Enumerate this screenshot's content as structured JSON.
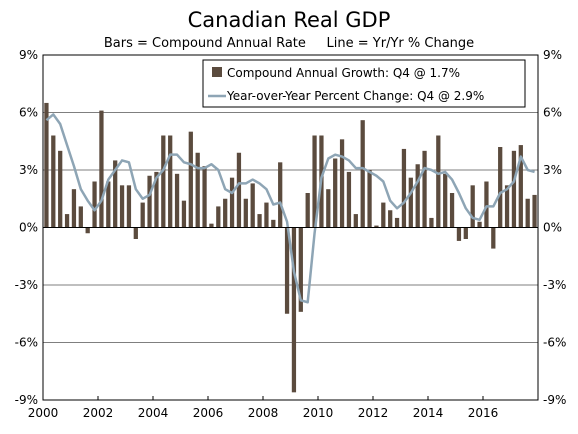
{
  "chart_data": {
    "type": "bar+line",
    "title": "Canadian Real GDP",
    "subtitle": "Bars = Compound Annual Rate     Line = Yr/Yr % Change",
    "y_ticks": [
      "9%",
      "6%",
      "3%",
      "0%",
      "-3%",
      "-6%",
      "-9%"
    ],
    "y_tick_values": [
      9,
      6,
      3,
      0,
      -3,
      -6,
      -9
    ],
    "x_ticks": [
      "2000",
      "2002",
      "2004",
      "2006",
      "2008",
      "2010",
      "2012",
      "2014",
      "2016"
    ],
    "x_tick_values": [
      2000,
      2002,
      2004,
      2006,
      2008,
      2010,
      2012,
      2014,
      2016
    ],
    "ylim": [
      -9,
      9
    ],
    "xlim": [
      2000,
      2018
    ],
    "grid": "horizontal",
    "legend_position": "top-right",
    "colors": {
      "bars": "#5b4b3e",
      "line": "#8ea5b5"
    },
    "series": [
      {
        "name": "Compound Annual Growth: Q4 @ 1.7%",
        "type": "bar",
        "x": [
          "2000-Q1",
          "2000-Q2",
          "2000-Q3",
          "2000-Q4",
          "2001-Q1",
          "2001-Q2",
          "2001-Q3",
          "2001-Q4",
          "2002-Q1",
          "2002-Q2",
          "2002-Q3",
          "2002-Q4",
          "2003-Q1",
          "2003-Q2",
          "2003-Q3",
          "2003-Q4",
          "2004-Q1",
          "2004-Q2",
          "2004-Q3",
          "2004-Q4",
          "2005-Q1",
          "2005-Q2",
          "2005-Q3",
          "2005-Q4",
          "2006-Q1",
          "2006-Q2",
          "2006-Q3",
          "2006-Q4",
          "2007-Q1",
          "2007-Q2",
          "2007-Q3",
          "2007-Q4",
          "2008-Q1",
          "2008-Q2",
          "2008-Q3",
          "2008-Q4",
          "2009-Q1",
          "2009-Q2",
          "2009-Q3",
          "2009-Q4",
          "2010-Q1",
          "2010-Q2",
          "2010-Q3",
          "2010-Q4",
          "2011-Q1",
          "2011-Q2",
          "2011-Q3",
          "2011-Q4",
          "2012-Q1",
          "2012-Q2",
          "2012-Q3",
          "2012-Q4",
          "2013-Q1",
          "2013-Q2",
          "2013-Q3",
          "2013-Q4",
          "2014-Q1",
          "2014-Q2",
          "2014-Q3",
          "2014-Q4",
          "2015-Q1",
          "2015-Q2",
          "2015-Q3",
          "2015-Q4",
          "2016-Q1",
          "2016-Q2",
          "2016-Q3",
          "2016-Q4",
          "2017-Q1",
          "2017-Q2",
          "2017-Q3",
          "2017-Q4"
        ],
        "values": [
          6.5,
          4.8,
          4.0,
          0.7,
          2.0,
          1.1,
          -0.3,
          2.4,
          6.1,
          2.4,
          3.5,
          2.2,
          2.2,
          -0.6,
          1.3,
          2.7,
          2.9,
          4.8,
          4.8,
          2.8,
          1.4,
          5.0,
          3.9,
          3.2,
          0.2,
          1.1,
          1.5,
          2.6,
          3.9,
          1.5,
          2.3,
          0.7,
          1.3,
          0.4,
          3.4,
          -4.5,
          -8.6,
          -4.4,
          1.8,
          4.8,
          4.8,
          2.0,
          3.6,
          4.6,
          2.9,
          0.7,
          5.6,
          3.0,
          0.1,
          1.3,
          0.9,
          0.5,
          4.1,
          2.6,
          3.3,
          4.0,
          0.5,
          4.8,
          2.8,
          1.8,
          -0.7,
          -0.6,
          2.2,
          0.3,
          2.4,
          -1.1,
          4.2,
          2.2,
          4.0,
          4.3,
          1.5,
          1.7
        ]
      },
      {
        "name": "Year-over-Year Percent Change: Q4 @ 2.9%",
        "type": "line",
        "x": [
          "2000-Q1",
          "2000-Q2",
          "2000-Q3",
          "2000-Q4",
          "2001-Q1",
          "2001-Q2",
          "2001-Q3",
          "2001-Q4",
          "2002-Q1",
          "2002-Q2",
          "2002-Q3",
          "2002-Q4",
          "2003-Q1",
          "2003-Q2",
          "2003-Q3",
          "2003-Q4",
          "2004-Q1",
          "2004-Q2",
          "2004-Q3",
          "2004-Q4",
          "2005-Q1",
          "2005-Q2",
          "2005-Q3",
          "2005-Q4",
          "2006-Q1",
          "2006-Q2",
          "2006-Q3",
          "2006-Q4",
          "2007-Q1",
          "2007-Q2",
          "2007-Q3",
          "2007-Q4",
          "2008-Q1",
          "2008-Q2",
          "2008-Q3",
          "2008-Q4",
          "2009-Q1",
          "2009-Q2",
          "2009-Q3",
          "2009-Q4",
          "2010-Q1",
          "2010-Q2",
          "2010-Q3",
          "2010-Q4",
          "2011-Q1",
          "2011-Q2",
          "2011-Q3",
          "2011-Q4",
          "2012-Q1",
          "2012-Q2",
          "2012-Q3",
          "2012-Q4",
          "2013-Q1",
          "2013-Q2",
          "2013-Q3",
          "2013-Q4",
          "2014-Q1",
          "2014-Q2",
          "2014-Q3",
          "2014-Q4",
          "2015-Q1",
          "2015-Q2",
          "2015-Q3",
          "2015-Q4",
          "2016-Q1",
          "2016-Q2",
          "2016-Q3",
          "2016-Q4",
          "2017-Q1",
          "2017-Q2",
          "2017-Q3",
          "2017-Q4"
        ],
        "values": [
          5.6,
          5.9,
          5.4,
          4.3,
          3.2,
          2.0,
          1.4,
          0.9,
          1.4,
          2.5,
          3.0,
          3.5,
          3.4,
          2.0,
          1.5,
          1.7,
          2.6,
          3.0,
          3.8,
          3.8,
          3.4,
          3.3,
          3.1,
          3.1,
          3.3,
          3.0,
          2.0,
          1.8,
          2.3,
          2.3,
          2.5,
          2.3,
          2.0,
          1.2,
          1.3,
          0.3,
          -2.3,
          -3.8,
          -3.9,
          -0.3,
          2.6,
          3.6,
          3.8,
          3.7,
          3.5,
          3.1,
          3.1,
          2.9,
          2.7,
          2.4,
          1.4,
          1.0,
          1.3,
          1.8,
          2.4,
          3.1,
          3.0,
          2.8,
          2.9,
          2.5,
          1.8,
          1.0,
          0.5,
          0.4,
          1.1,
          1.1,
          1.8,
          2.0,
          2.4,
          3.7,
          3.0,
          2.9
        ]
      }
    ]
  }
}
